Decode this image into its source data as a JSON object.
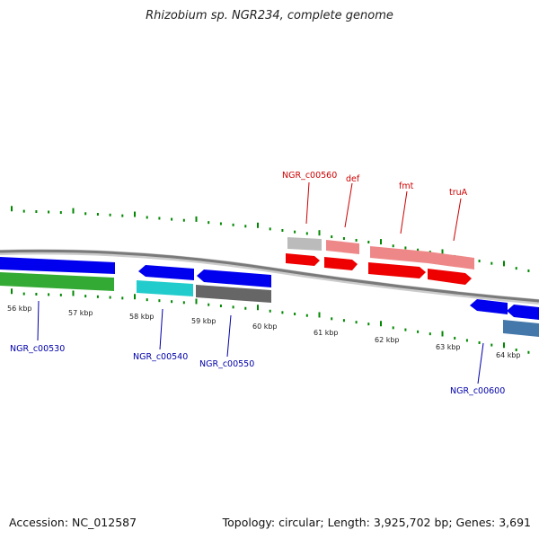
{
  "header": {
    "title": "Rhizobium sp. NGR234, complete genome"
  },
  "footer": {
    "accession": "Accession: NC_012587",
    "stats": "Topology: circular; Length: 3,925,702 bp; Genes: 3,691"
  },
  "kbp_ticks": [
    "56 kbp",
    "57 kbp",
    "58 kbp",
    "59 kbp",
    "60 kbp",
    "61 kbp",
    "62 kbp",
    "63 kbp",
    "64 kbp"
  ],
  "gene_labels_top": [
    "NGR_c00560",
    "def",
    "fmt",
    "truA"
  ],
  "gene_labels_bottom": [
    "NGR_c00530",
    "NGR_c00540",
    "NGR_c00550",
    "NGR_c00600"
  ],
  "colors": {
    "label_top": "#cc0000",
    "label_bottom": "#0000aa",
    "tick": "#008800",
    "backbone": "#7a7a7a",
    "gene_blue": "#0000ee",
    "gene_red": "#ee0000",
    "gene_pink": "#ee8888",
    "gene_green": "#33aa33",
    "gene_cyan": "#22cccc",
    "gene_grey": "#666666",
    "gene_lightgrey": "#bbbbbb",
    "gene_steel": "#4477aa"
  }
}
